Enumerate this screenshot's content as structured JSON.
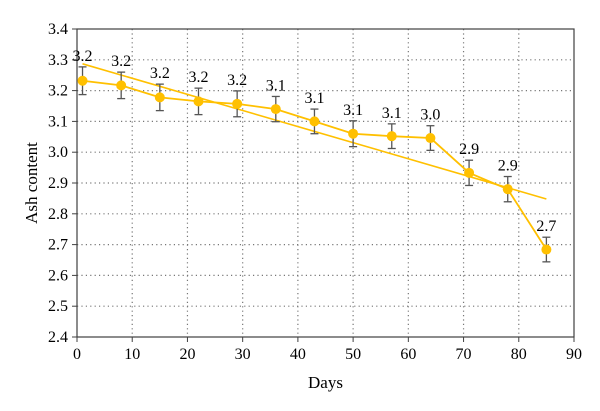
{
  "chart_data": {
    "type": "line",
    "title": "",
    "xlabel": "Days",
    "ylabel": "Ash content",
    "xlim": [
      0,
      90
    ],
    "ylim": [
      2.4,
      3.4
    ],
    "xticks": [
      "0",
      "10",
      "20",
      "30",
      "40",
      "50",
      "60",
      "70",
      "80",
      "90"
    ],
    "yticks": [
      "2.4",
      "2.5",
      "2.6",
      "2.7",
      "2.8",
      "2.9",
      "3.0",
      "3.1",
      "3.2",
      "3.3",
      "3.4"
    ],
    "grid": true,
    "legend": "none",
    "series": [
      {
        "x": [
          1,
          8,
          15,
          22,
          29,
          36,
          43,
          50,
          57,
          64,
          71,
          78,
          85
        ],
        "y": [
          3.232,
          3.217,
          3.178,
          3.165,
          3.157,
          3.14,
          3.1,
          3.06,
          3.052,
          3.046,
          2.933,
          2.88,
          2.684
        ],
        "error": [
          0.045,
          0.043,
          0.043,
          0.043,
          0.042,
          0.041,
          0.04,
          0.042,
          0.04,
          0.04,
          0.041,
          0.041,
          0.04
        ],
        "labels": [
          "3.2",
          "3.2",
          "3.2",
          "3.2",
          "3.2",
          "3.1",
          "3.1",
          "3.1",
          "3.1",
          "3.0",
          "2.9",
          "2.9",
          "2.7"
        ]
      }
    ],
    "trendline": {
      "type": "linear",
      "x": [
        1,
        85
      ],
      "y": [
        3.287,
        2.848
      ]
    },
    "colors": {
      "series": "#ffc000",
      "trend": "#ffc000",
      "error_bar": "#555555",
      "grid": "#777777",
      "axis": "#404040"
    }
  }
}
